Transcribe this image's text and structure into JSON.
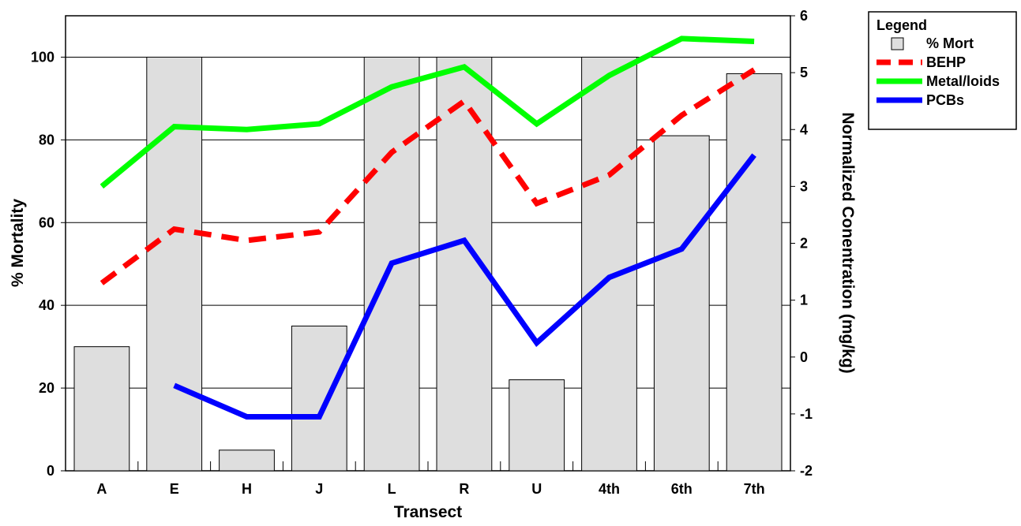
{
  "chart_data": {
    "type": "bar",
    "xlabel": "Transect",
    "ylabel": "% Mortality",
    "y2label": "Normalized Conentration (mg/kg)",
    "categories": [
      "A",
      "E",
      "H",
      "J",
      "L",
      "R",
      "U",
      "4th",
      "6th",
      "7th"
    ],
    "ylim": [
      0,
      110
    ],
    "y_ticks": [
      0,
      20,
      40,
      60,
      80,
      100
    ],
    "y2lim": [
      -2,
      6
    ],
    "y2_ticks": [
      -2,
      -1,
      0,
      1,
      2,
      3,
      4,
      5,
      6
    ],
    "grid": true,
    "legend_position": "top-right",
    "legend_title": "Legend",
    "bars": {
      "name": "% Mort",
      "axis": "left",
      "values": [
        30,
        100,
        5,
        35,
        100,
        100,
        22,
        100,
        81,
        96
      ],
      "fill": "#dedede",
      "stroke": "#000000"
    },
    "series": [
      {
        "name": "BEHP",
        "axis": "right",
        "color": "#ff0000",
        "style": "dashed",
        "values": [
          1.3,
          2.25,
          2.05,
          2.2,
          3.6,
          4.5,
          2.7,
          3.2,
          4.25,
          5.05
        ]
      },
      {
        "name": "Metal/loids",
        "axis": "right",
        "color": "#00ff00",
        "style": "solid",
        "values": [
          3.0,
          4.05,
          4.0,
          4.1,
          4.75,
          5.1,
          4.1,
          4.95,
          5.6,
          5.55
        ]
      },
      {
        "name": "PCBs",
        "axis": "right",
        "color": "#0000ff",
        "style": "solid",
        "values": [
          null,
          -0.5,
          -1.05,
          -1.05,
          1.65,
          2.05,
          0.25,
          1.4,
          1.9,
          3.55
        ]
      }
    ]
  }
}
